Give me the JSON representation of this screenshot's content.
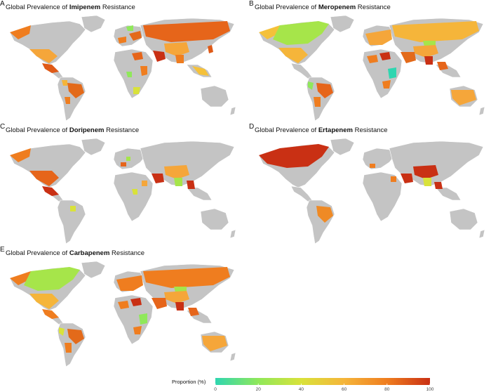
{
  "panels": [
    {
      "letter": "A",
      "title_prefix": "Global Prevalence of ",
      "drug": "Imipenem",
      "title_suffix": " Resistance"
    },
    {
      "letter": "B",
      "title_prefix": "Global Prevalence of ",
      "drug": "Meropenem",
      "title_suffix": " Resistance"
    },
    {
      "letter": "C",
      "title_prefix": "Global Prevalence of ",
      "drug": "Doripenem",
      "title_suffix": " Resistance"
    },
    {
      "letter": "D",
      "title_prefix": "Global Prevalence of ",
      "drug": "Ertapenem",
      "title_suffix": " Resistance"
    },
    {
      "letter": "E",
      "title_prefix": "Global Prevalence of ",
      "drug": "Carbapenem",
      "title_suffix": " Resistance"
    }
  ],
  "legend": {
    "title": "Proportion (%)",
    "ticks": [
      "0",
      "20",
      "40",
      "60",
      "80",
      "100"
    ],
    "range": [
      0,
      100
    ],
    "colors": [
      "#2fd6b0",
      "#8fe85a",
      "#d9e23a",
      "#f5b53a",
      "#ef7d1f",
      "#c93014"
    ]
  },
  "colors": {
    "no_data": "#c4c4c4",
    "border": "#ffffff"
  }
}
